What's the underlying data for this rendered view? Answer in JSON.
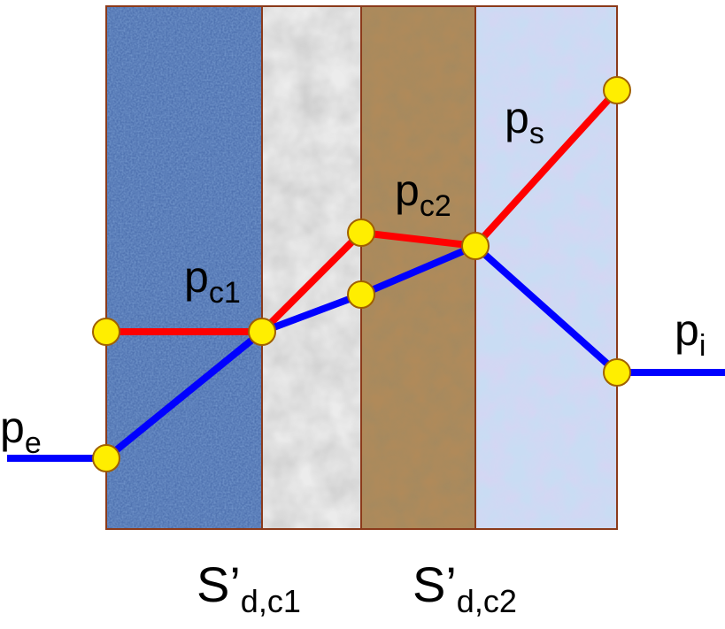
{
  "labels": {
    "pe": {
      "main": "p",
      "sub": "e"
    },
    "pc1": {
      "main": "p",
      "sub": "c1"
    },
    "pc2": {
      "main": "p",
      "sub": "c2"
    },
    "ps": {
      "main": "p",
      "sub": "s"
    },
    "pi": {
      "main": "p",
      "sub": "i"
    }
  },
  "layers": [
    {
      "main": "S’",
      "sub": "d,c1"
    },
    {
      "main": "S’",
      "sub": "d,c2"
    }
  ]
}
